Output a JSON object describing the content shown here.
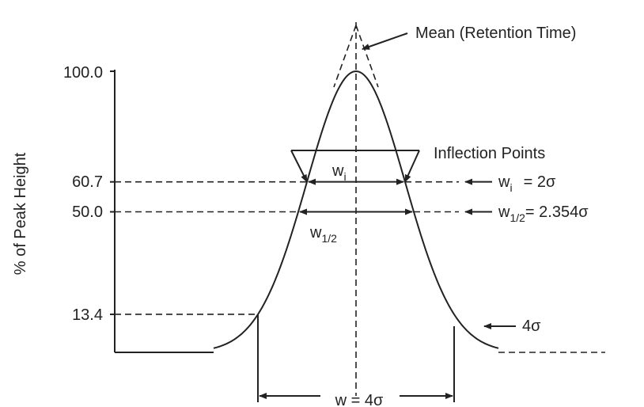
{
  "y_axis": {
    "title": "% of Peak Height",
    "ticks": [
      "100.0",
      "60.7",
      "50.0",
      "13.4"
    ]
  },
  "annotations": {
    "mean": "Mean (Retention Time)",
    "inflection": "Inflection Points",
    "w_i": {
      "base": "w",
      "sub": "i"
    },
    "w_half": {
      "base": "w",
      "sub": "1/2"
    },
    "w_i_eq": {
      "base": "w",
      "sub": "i",
      "rest": "= 2σ"
    },
    "w_half_eq": {
      "base": "w",
      "sub": "1/2",
      "rest": "= 2.354σ"
    },
    "four_sigma": "4σ",
    "w_base": "w = 4σ"
  }
}
